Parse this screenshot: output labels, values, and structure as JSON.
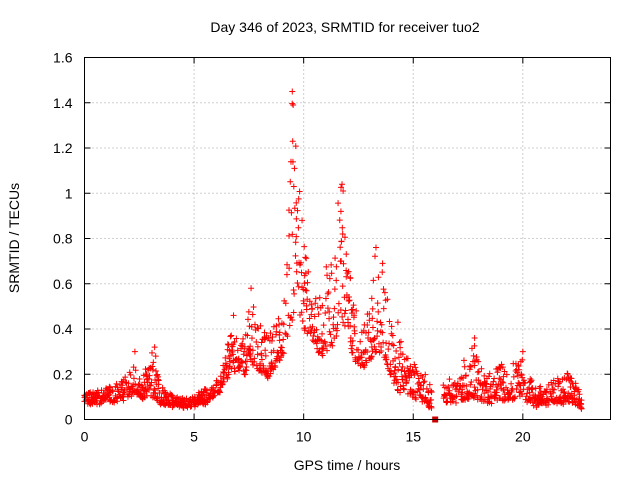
{
  "chart_data": {
    "type": "scatter",
    "title": "Day 346 of 2023, SRMTID for receiver tuo2",
    "xlabel": "GPS time / hours",
    "ylabel": "SRMTID / TECUs",
    "xlim": [
      0,
      24
    ],
    "ylim": [
      0,
      1.6
    ],
    "xticks": [
      0,
      5,
      10,
      15,
      20
    ],
    "xtick_labels": [
      "0",
      "5",
      "10",
      "15",
      "20"
    ],
    "yticks": [
      0,
      0.2,
      0.4,
      0.6,
      0.8,
      1.0,
      1.2,
      1.4,
      1.6
    ],
    "ytick_labels": [
      "0",
      "0.2",
      "0.4",
      "0.6",
      "0.8",
      "1",
      "1.2",
      "1.4",
      "1.6"
    ],
    "grid": true,
    "marker": "+",
    "color": "#ff0000",
    "series": [
      {
        "name": "SRMTID",
        "envelope": [
          [
            0.0,
            0.07,
            0.12
          ],
          [
            0.5,
            0.07,
            0.13
          ],
          [
            1.0,
            0.08,
            0.14
          ],
          [
            1.5,
            0.08,
            0.15
          ],
          [
            2.0,
            0.1,
            0.22
          ],
          [
            2.3,
            0.12,
            0.3
          ],
          [
            2.6,
            0.09,
            0.16
          ],
          [
            3.0,
            0.1,
            0.28
          ],
          [
            3.2,
            0.1,
            0.32
          ],
          [
            3.5,
            0.07,
            0.14
          ],
          [
            4.0,
            0.06,
            0.11
          ],
          [
            4.5,
            0.06,
            0.1
          ],
          [
            5.0,
            0.06,
            0.11
          ],
          [
            5.5,
            0.07,
            0.13
          ],
          [
            6.0,
            0.1,
            0.17
          ],
          [
            6.3,
            0.15,
            0.25
          ],
          [
            6.7,
            0.22,
            0.42
          ],
          [
            7.0,
            0.22,
            0.38
          ],
          [
            7.3,
            0.2,
            0.35
          ],
          [
            7.6,
            0.25,
            0.55
          ],
          [
            8.0,
            0.22,
            0.42
          ],
          [
            8.4,
            0.18,
            0.38
          ],
          [
            8.8,
            0.25,
            0.45
          ],
          [
            9.2,
            0.3,
            0.6
          ],
          [
            9.5,
            0.45,
            1.45
          ],
          [
            9.7,
            0.5,
            1.1
          ],
          [
            10.0,
            0.4,
            0.85
          ],
          [
            10.3,
            0.35,
            0.6
          ],
          [
            10.7,
            0.3,
            0.55
          ],
          [
            11.0,
            0.28,
            0.7
          ],
          [
            11.3,
            0.3,
            0.8
          ],
          [
            11.7,
            0.45,
            1.04
          ],
          [
            12.0,
            0.4,
            0.75
          ],
          [
            12.3,
            0.25,
            0.5
          ],
          [
            12.7,
            0.22,
            0.42
          ],
          [
            13.0,
            0.25,
            0.55
          ],
          [
            13.3,
            0.3,
            0.75
          ],
          [
            13.6,
            0.3,
            0.68
          ],
          [
            14.0,
            0.18,
            0.45
          ],
          [
            14.3,
            0.12,
            0.38
          ],
          [
            14.7,
            0.12,
            0.3
          ],
          [
            15.0,
            0.1,
            0.25
          ],
          [
            15.5,
            0.08,
            0.2
          ],
          [
            15.8,
            0.05,
            0.15
          ],
          [
            16.5,
            0.07,
            0.16
          ],
          [
            17.0,
            0.08,
            0.22
          ],
          [
            17.5,
            0.09,
            0.28
          ],
          [
            17.8,
            0.1,
            0.36
          ],
          [
            18.2,
            0.08,
            0.2
          ],
          [
            18.6,
            0.08,
            0.22
          ],
          [
            19.0,
            0.09,
            0.25
          ],
          [
            19.5,
            0.09,
            0.24
          ],
          [
            20.0,
            0.1,
            0.3
          ],
          [
            20.3,
            0.07,
            0.2
          ],
          [
            20.6,
            0.06,
            0.13
          ],
          [
            21.0,
            0.07,
            0.15
          ],
          [
            21.4,
            0.08,
            0.19
          ],
          [
            21.7,
            0.07,
            0.18
          ],
          [
            22.0,
            0.08,
            0.22
          ],
          [
            22.3,
            0.07,
            0.18
          ],
          [
            22.7,
            0.05,
            0.1
          ]
        ],
        "peaks": [
          [
            9.48,
            1.45
          ],
          [
            9.52,
            1.39
          ],
          [
            9.5,
            1.23
          ],
          [
            9.58,
            1.11
          ],
          [
            9.55,
            1.03
          ],
          [
            11.75,
            1.04
          ],
          [
            11.8,
            1.01
          ],
          [
            11.7,
            0.92
          ],
          [
            2.3,
            0.3
          ],
          [
            3.2,
            0.32
          ],
          [
            13.3,
            0.76
          ],
          [
            13.6,
            0.69
          ],
          [
            7.6,
            0.58
          ],
          [
            17.8,
            0.36
          ],
          [
            20.0,
            0.3
          ],
          [
            14.3,
            0.43
          ],
          [
            6.8,
            0.46
          ]
        ]
      }
    ],
    "annotations": [
      {
        "type": "square-marker",
        "x": 16.0,
        "y": 0.0
      }
    ]
  }
}
